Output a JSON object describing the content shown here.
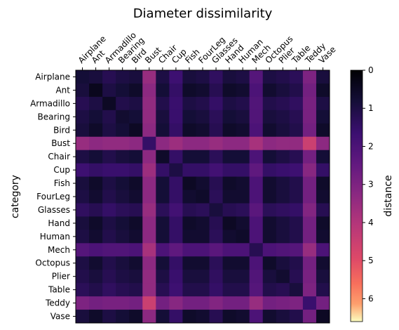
{
  "chart_data": {
    "type": "heatmap",
    "title": "Diameter dissimilarity",
    "xlabel": "",
    "ylabel": "category",
    "x_categories": [
      "Airplane",
      "Ant",
      "Armadillo",
      "Bearing",
      "Bird",
      "Bust",
      "Chair",
      "Cup",
      "Fish",
      "FourLeg",
      "Glasses",
      "Hand",
      "Human",
      "Mech",
      "Octopus",
      "Plier",
      "Table",
      "Teddy",
      "Vase"
    ],
    "y_categories": [
      "Airplane",
      "Ant",
      "Armadillo",
      "Bearing",
      "Bird",
      "Bust",
      "Chair",
      "Cup",
      "Fish",
      "FourLeg",
      "Glasses",
      "Hand",
      "Human",
      "Mech",
      "Octopus",
      "Plier",
      "Table",
      "Teddy",
      "Vase"
    ],
    "x_tick_position": "top",
    "x_tick_rotation": 45,
    "colormap": "magma_r",
    "colorbar": {
      "label": "distance",
      "range": [
        0,
        6.6
      ],
      "ticks": [
        0,
        1,
        2,
        3,
        4,
        5,
        6
      ]
    },
    "category_level_distance": [
      [
        0.8,
        0.9,
        1.2,
        1.0,
        0.9,
        3.5,
        1.0,
        1.7,
        0.9,
        1.0,
        1.4,
        0.9,
        1.0,
        2.2,
        1.0,
        1.1,
        1.3,
        3.0,
        0.9
      ],
      [
        0.9,
        0.4,
        1.0,
        0.8,
        0.6,
        3.3,
        0.8,
        1.5,
        0.6,
        0.7,
        1.2,
        0.6,
        0.7,
        2.0,
        0.7,
        0.9,
        1.1,
        2.8,
        0.6
      ],
      [
        1.2,
        1.0,
        0.5,
        1.1,
        1.0,
        3.4,
        1.1,
        1.6,
        1.0,
        1.1,
        1.5,
        1.0,
        1.1,
        2.1,
        1.1,
        1.2,
        1.4,
        2.9,
        1.0
      ],
      [
        1.0,
        0.8,
        1.1,
        0.7,
        0.8,
        3.4,
        0.9,
        1.6,
        0.8,
        0.9,
        1.3,
        0.8,
        0.9,
        2.1,
        0.9,
        1.0,
        1.2,
        2.9,
        0.8
      ],
      [
        0.9,
        0.6,
        1.0,
        0.8,
        0.5,
        3.3,
        0.8,
        1.5,
        0.6,
        0.7,
        1.2,
        0.6,
        0.7,
        2.0,
        0.7,
        0.9,
        1.1,
        2.8,
        0.6
      ],
      [
        3.5,
        3.3,
        3.4,
        3.4,
        3.3,
        1.5,
        3.3,
        3.6,
        3.3,
        3.3,
        3.5,
        3.3,
        3.3,
        3.8,
        3.3,
        3.4,
        3.4,
        4.5,
        3.3
      ],
      [
        1.0,
        0.8,
        1.1,
        0.9,
        0.8,
        3.3,
        0.6,
        1.5,
        0.8,
        0.8,
        1.3,
        0.8,
        0.8,
        2.0,
        0.8,
        1.0,
        1.2,
        2.8,
        0.8
      ],
      [
        1.7,
        1.5,
        1.6,
        1.6,
        1.5,
        3.6,
        1.5,
        1.0,
        1.5,
        1.5,
        1.8,
        1.5,
        1.5,
        2.4,
        1.5,
        1.6,
        1.7,
        3.2,
        1.5
      ],
      [
        0.9,
        0.6,
        1.0,
        0.8,
        0.6,
        3.3,
        0.8,
        1.5,
        0.5,
        0.7,
        1.2,
        0.6,
        0.7,
        2.0,
        0.7,
        0.9,
        1.1,
        2.8,
        0.6
      ],
      [
        1.0,
        0.7,
        1.1,
        0.9,
        0.7,
        3.3,
        0.8,
        1.5,
        0.7,
        0.6,
        1.3,
        0.7,
        0.7,
        2.0,
        0.7,
        0.9,
        1.1,
        2.8,
        0.7
      ],
      [
        1.4,
        1.2,
        1.5,
        1.3,
        1.2,
        3.5,
        1.3,
        1.8,
        1.2,
        1.3,
        0.9,
        1.2,
        1.3,
        2.3,
        1.3,
        1.4,
        1.5,
        3.1,
        1.2
      ],
      [
        0.9,
        0.6,
        1.0,
        0.8,
        0.6,
        3.3,
        0.8,
        1.5,
        0.6,
        0.7,
        1.2,
        0.5,
        0.7,
        2.0,
        0.7,
        0.9,
        1.1,
        2.8,
        0.6
      ],
      [
        1.0,
        0.7,
        1.1,
        0.9,
        0.7,
        3.3,
        0.8,
        1.5,
        0.7,
        0.7,
        1.3,
        0.7,
        0.6,
        2.0,
        0.7,
        0.9,
        1.1,
        2.8,
        0.7
      ],
      [
        2.2,
        2.0,
        2.1,
        2.1,
        2.0,
        3.8,
        2.0,
        2.4,
        2.0,
        2.0,
        2.3,
        2.0,
        2.0,
        1.2,
        2.0,
        2.1,
        2.2,
        3.5,
        2.0
      ],
      [
        1.0,
        0.7,
        1.1,
        0.9,
        0.7,
        3.3,
        0.8,
        1.5,
        0.7,
        0.7,
        1.3,
        0.7,
        0.7,
        2.0,
        0.6,
        0.9,
        1.1,
        2.8,
        0.7
      ],
      [
        1.1,
        0.9,
        1.2,
        1.0,
        0.9,
        3.4,
        1.0,
        1.6,
        0.9,
        0.9,
        1.4,
        0.9,
        0.9,
        2.1,
        0.9,
        0.7,
        1.2,
        2.9,
        0.9
      ],
      [
        1.3,
        1.1,
        1.4,
        1.2,
        1.1,
        3.4,
        1.2,
        1.7,
        1.1,
        1.1,
        1.5,
        1.1,
        1.1,
        2.2,
        1.1,
        1.2,
        0.9,
        3.0,
        1.1
      ],
      [
        3.0,
        2.8,
        2.9,
        2.9,
        2.8,
        4.5,
        2.8,
        3.2,
        2.8,
        2.8,
        3.1,
        2.8,
        2.8,
        3.5,
        2.8,
        2.9,
        3.0,
        1.6,
        2.8
      ],
      [
        0.9,
        0.6,
        1.0,
        0.8,
        0.6,
        3.3,
        0.8,
        1.5,
        0.6,
        0.7,
        1.2,
        0.6,
        0.7,
        2.0,
        0.7,
        0.9,
        1.1,
        2.8,
        0.5
      ]
    ],
    "colors": {
      "background": "#ffffff",
      "axis": "#000000"
    }
  }
}
